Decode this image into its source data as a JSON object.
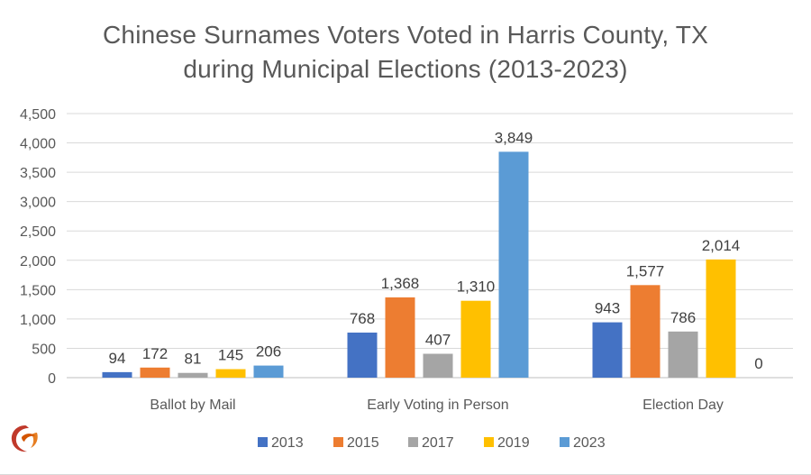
{
  "chart_data": {
    "type": "bar",
    "title_line1": "Chinese Surnames Voters Voted in Harris County, TX",
    "title_line2": "during Municipal Elections (2013-2023)",
    "categories": [
      "Ballot by Mail",
      "Early Voting in Person",
      "Election Day"
    ],
    "series": [
      {
        "name": "2013",
        "color": "#4472C4",
        "values": [
          94,
          768,
          943
        ]
      },
      {
        "name": "2015",
        "color": "#ED7D31",
        "values": [
          172,
          1368,
          1577
        ]
      },
      {
        "name": "2017",
        "color": "#A5A5A5",
        "values": [
          81,
          407,
          786
        ]
      },
      {
        "name": "2019",
        "color": "#FFC000",
        "values": [
          145,
          1310,
          2014
        ]
      },
      {
        "name": "2023",
        "color": "#5B9BD5",
        "values": [
          206,
          3849,
          0
        ]
      }
    ],
    "data_labels": [
      [
        "94",
        "768",
        "943"
      ],
      [
        "172",
        "1,368",
        "1,577"
      ],
      [
        "81",
        "407",
        "786"
      ],
      [
        "145",
        "1,310",
        "2,014"
      ],
      [
        "206",
        "3,849",
        "0"
      ]
    ],
    "yticks": [
      "0",
      "500",
      "1,000",
      "1,500",
      "2,000",
      "2,500",
      "3,000",
      "3,500",
      "4,000",
      "4,500"
    ],
    "ylim": [
      0,
      4500
    ],
    "grid": true,
    "legend_position": "bottom",
    "logo": "red-swirl-logo"
  }
}
